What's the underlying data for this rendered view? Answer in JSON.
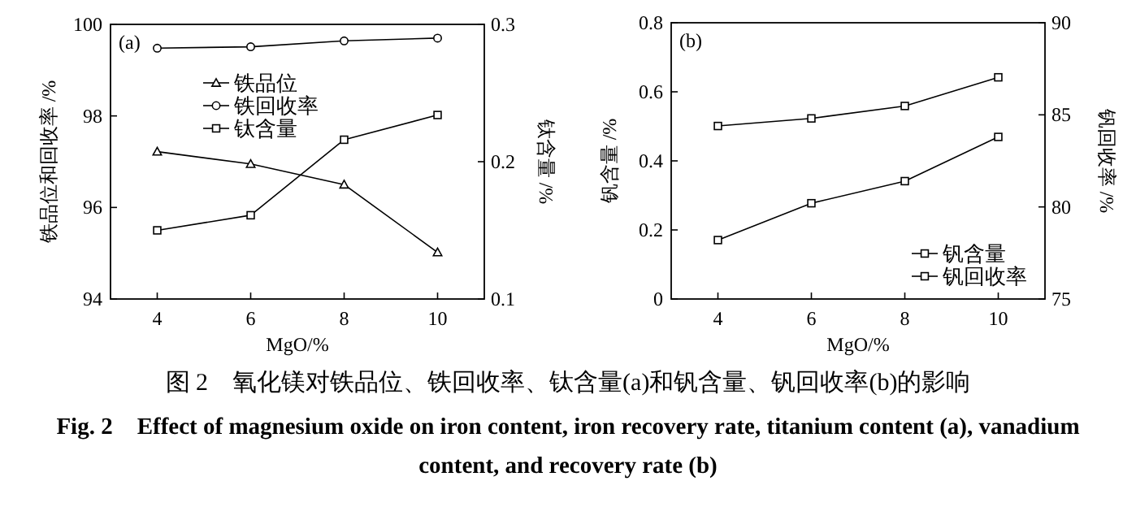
{
  "chart_data": [
    {
      "type": "line",
      "annotations": [
        "(a)"
      ],
      "xlabel": "MgO/%",
      "ylabel": "铁品位和回收率 /%",
      "y2label": "钛含量 /%",
      "x": [
        4,
        6,
        8,
        10
      ],
      "xlim": [
        3,
        11
      ],
      "xticks": [
        4,
        6,
        8,
        10
      ],
      "ylim": [
        94,
        100
      ],
      "yticks": [
        94,
        96,
        98,
        100
      ],
      "y2lim": [
        0.1,
        0.3
      ],
      "y2ticks": [
        0.1,
        0.2,
        0.3
      ],
      "legend": "top left",
      "grid": false,
      "series": [
        {
          "name": "铁品位",
          "color": "#000000",
          "marker": "triangle",
          "values": [
            97.22,
            96.95,
            96.5,
            95.02
          ]
        },
        {
          "name": "铁回收率",
          "color": "#000000",
          "marker": "circle",
          "values": [
            99.48,
            99.51,
            99.64,
            99.7
          ]
        },
        {
          "name": "钛含量",
          "color": "#000000",
          "marker": "square",
          "axis": "y2",
          "values": [
            0.15,
            0.161,
            0.216,
            0.234
          ]
        }
      ]
    },
    {
      "type": "line",
      "annotations": [
        "(b)"
      ],
      "xlabel": "MgO/%",
      "ylabel": "钒含量 /%",
      "y2label": "钒回收率 /%",
      "x": [
        4,
        6,
        8,
        10
      ],
      "xlim": [
        3,
        11
      ],
      "xticks": [
        4,
        6,
        8,
        10
      ],
      "ylim": [
        0,
        0.8
      ],
      "yticks": [
        0,
        0.2,
        0.4,
        0.6,
        0.8
      ],
      "y2lim": [
        75,
        90
      ],
      "y2ticks": [
        75,
        80,
        85,
        90
      ],
      "legend": "bottom right",
      "grid": false,
      "series": [
        {
          "name": "钒含量",
          "color": "#000000",
          "marker": "square",
          "values": [
            0.501,
            0.523,
            0.559,
            0.642
          ]
        },
        {
          "name": "钒回收率",
          "color": "#000000",
          "marker": "square",
          "axis": "y2",
          "values": [
            78.2,
            80.2,
            81.4,
            83.8
          ]
        }
      ]
    },
    {
      "type": "other",
      "title": "图 2　氧化镁对铁品位、铁回收率、钛含量(a)和钒含量、钒回收率(b)的影响",
      "subtitle": "Fig. 2　Effect of magnesium oxide on iron content, iron recovery rate, titanium content (a), vanadium content, and recovery rate (b)"
    }
  ]
}
